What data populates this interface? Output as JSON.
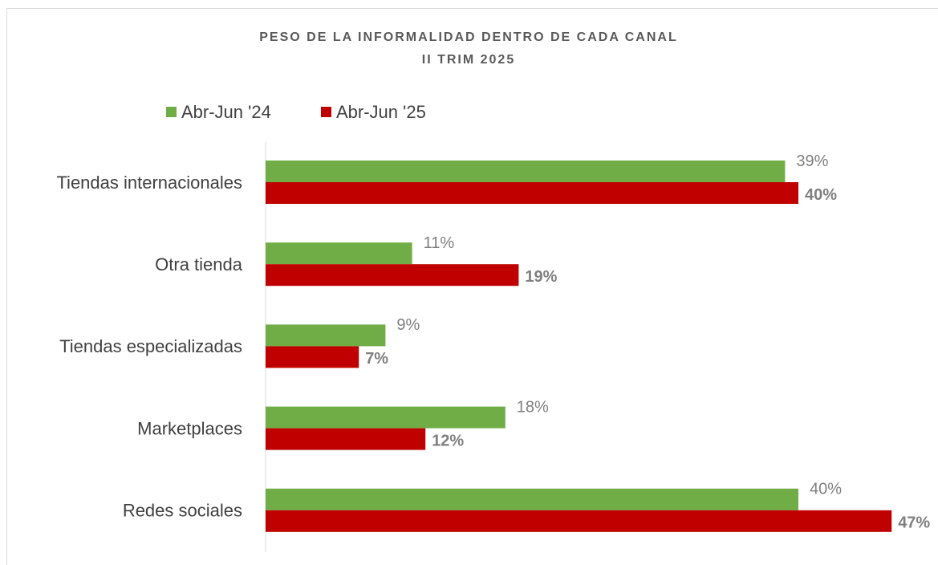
{
  "chart_data": {
    "type": "barh",
    "title": "PESO DE LA INFORMALIDAD DENTRO DE CADA CANAL",
    "subtitle": "II TRIM 2025",
    "categories": [
      "Tiendas internacionales",
      "Otra tienda",
      "Tiendas especializadas",
      "Marketplaces",
      "Redes sociales"
    ],
    "series": [
      {
        "name": "Abr-Jun '24",
        "color": "#70ad47",
        "values": [
          39,
          11,
          9,
          18,
          40
        ],
        "value_labels": [
          "39%",
          "11%",
          "9%",
          "18%",
          "40%"
        ]
      },
      {
        "name": "Abr-Jun '25",
        "color": "#c00000",
        "values": [
          40,
          19,
          7,
          12,
          47
        ],
        "value_labels": [
          "40%",
          "19%",
          "7%",
          "12%",
          "47%"
        ]
      }
    ],
    "legend": "top"
  }
}
